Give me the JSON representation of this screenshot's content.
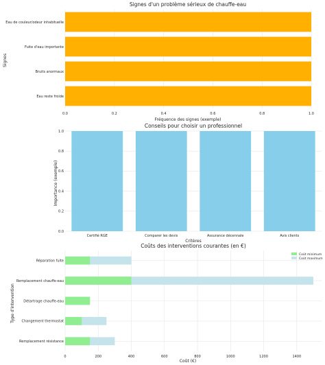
{
  "chart_data": [
    {
      "type": "bar",
      "orientation": "horizontal",
      "title": "Signes d'un problème sérieux de chauffe-eau",
      "xlabel": "Fréquence des signes (exemple)",
      "ylabel": "Signes",
      "categories": [
        "Eau de couleur/odeur inhabituelle",
        "Fuite d'eau importante",
        "Bruits anormaux",
        "Eau reste froide"
      ],
      "values": [
        1.0,
        1.0,
        1.0,
        1.0
      ],
      "xlim": [
        0,
        1.0
      ],
      "xticks": [
        "0.0",
        "0.2",
        "0.4",
        "0.6",
        "0.8",
        "1.0"
      ],
      "color": "#ffb000",
      "grid": true
    },
    {
      "type": "bar",
      "orientation": "vertical",
      "title": "Conseils pour choisir un professionnel",
      "xlabel": "Critères",
      "ylabel": "Importance (exemple)",
      "categories": [
        "Certifié RGE",
        "Comparer les devis",
        "Assurance décennale",
        "Avis clients"
      ],
      "values": [
        1.0,
        1.0,
        1.0,
        1.0
      ],
      "ylim": [
        0,
        1.0
      ],
      "yticks": [
        "0.0",
        "0.2",
        "0.4",
        "0.6",
        "0.8",
        "1.0"
      ],
      "color": "#87ceeb",
      "grid": true
    },
    {
      "type": "bar",
      "orientation": "horizontal",
      "stacked": "overlay",
      "title": "Coûts des interventions courantes (en €)",
      "xlabel": "Coût (€)",
      "ylabel": "Type d'intervention",
      "categories": [
        "Réparation fuite",
        "Remplacement chauffe-eau",
        "Détartrage chauffe-eau",
        "Changement thermostat",
        "Remplacement résistance"
      ],
      "series": [
        {
          "name": "Coût minimum",
          "values": [
            150,
            400,
            150,
            100,
            150
          ],
          "color": "#90ee90"
        },
        {
          "name": "Coût maximum",
          "values": [
            400,
            1500,
            150,
            250,
            300
          ],
          "color": "#c5e3ea"
        }
      ],
      "xlim": [
        0,
        1550
      ],
      "xticks": [
        "0",
        "200",
        "400",
        "600",
        "800",
        "1000",
        "1200",
        "1400"
      ],
      "legend": "top-right",
      "grid": true
    }
  ]
}
